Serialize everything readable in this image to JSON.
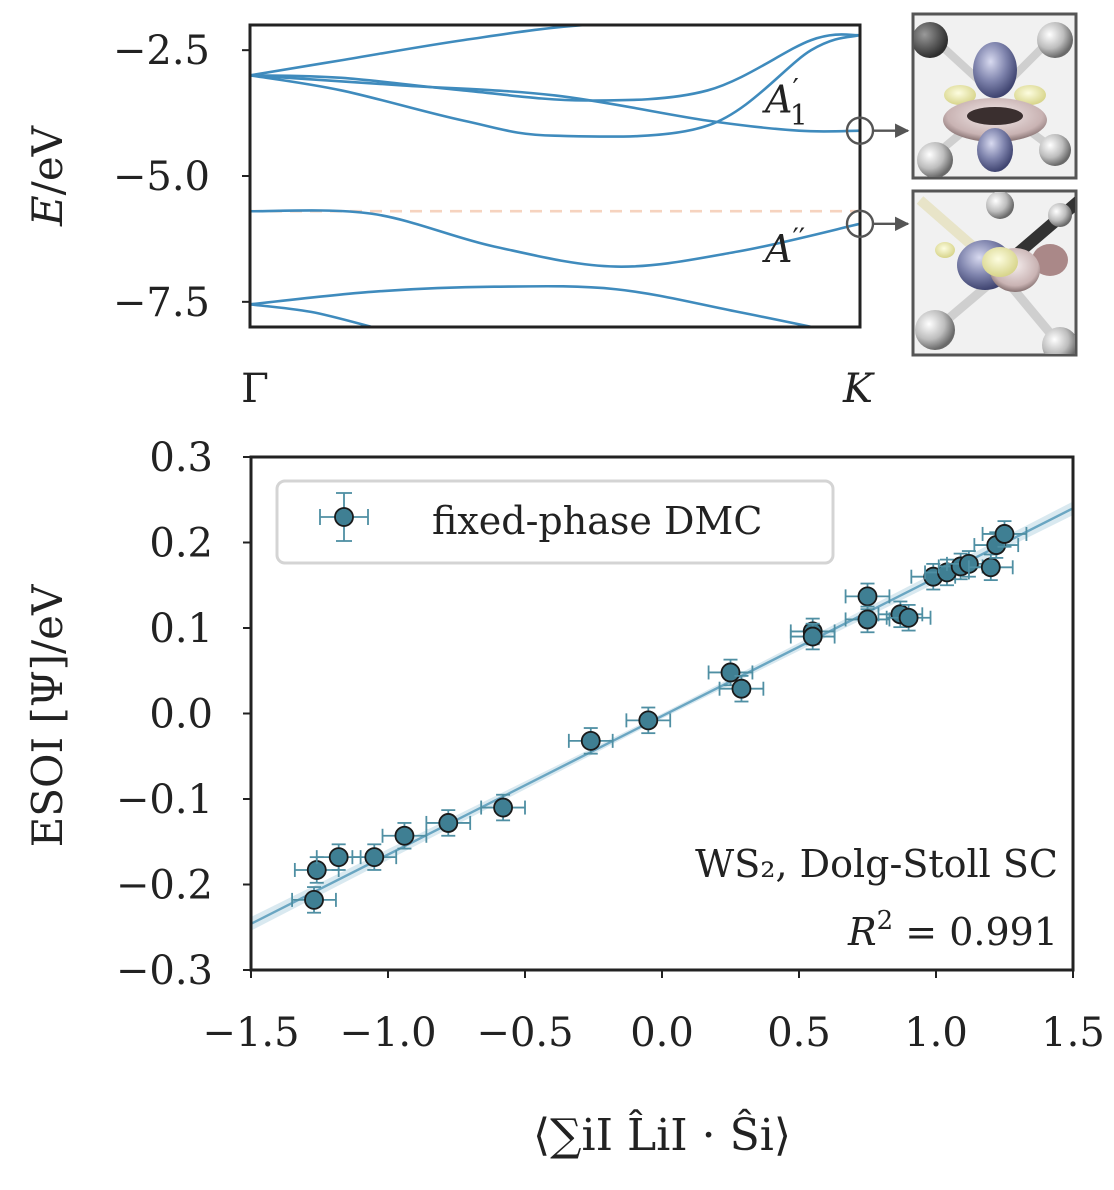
{
  "colors": {
    "band": "#3f8bbd",
    "fermi": "#f6d3bf",
    "marker_fill": "#3f7f93",
    "marker_edge": "#1a1a1a",
    "errorbar": "#4f8fa3",
    "fit_line": "#6aa6c2",
    "fit_band": "#cfe3ec",
    "axis": "#222222"
  },
  "chart_data": [
    {
      "type": "line",
      "ylabel_main": "E",
      "ylabel_unit": "/eV",
      "xticks": [
        "Γ",
        "K"
      ],
      "yticks": [
        -2.5,
        -5.0,
        -7.5
      ],
      "ytick_labels": [
        "−2.5",
        "−5.0",
        "−7.5"
      ],
      "ylim": [
        -8.0,
        -2.0
      ],
      "xlim": [
        0,
        1
      ],
      "fermi_level": -5.7,
      "annotations": [
        {
          "label": "A",
          "sup": "′",
          "sub": "1",
          "k": 1.0,
          "energy": -4.1
        },
        {
          "label": "A",
          "sup": "′′",
          "sub": "",
          "k": 1.0,
          "energy": -5.95
        }
      ],
      "series": [
        {
          "x": [
            0,
            0.15,
            0.35,
            0.55,
            0.75,
            0.92,
            1.0
          ],
          "y": [
            -3.0,
            -2.7,
            -2.3,
            -2.0,
            -2.0,
            -2.0,
            -2.0
          ]
        },
        {
          "x": [
            0,
            0.15,
            0.35,
            0.55,
            0.75,
            0.92,
            1.0
          ],
          "y": [
            -3.0,
            -3.05,
            -3.3,
            -3.5,
            -3.3,
            -2.3,
            -2.2
          ]
        },
        {
          "x": [
            0,
            0.15,
            0.35,
            0.5,
            0.75,
            0.92,
            1.0
          ],
          "y": [
            -3.0,
            -3.3,
            -3.9,
            -4.2,
            -4.0,
            -2.5,
            -2.2
          ]
        },
        {
          "x": [
            0,
            0.25,
            0.5,
            0.75,
            0.9,
            1.0
          ],
          "y": [
            -3.0,
            -3.2,
            -3.4,
            -3.9,
            -4.1,
            -4.1
          ]
        },
        {
          "x": [
            0,
            0.2,
            0.4,
            0.6,
            0.8,
            1.0
          ],
          "y": [
            -5.7,
            -5.75,
            -6.4,
            -6.8,
            -6.5,
            -5.95
          ]
        },
        {
          "x": [
            0,
            0.2,
            0.4,
            0.6,
            0.8,
            1.0
          ],
          "y": [
            -7.55,
            -7.3,
            -7.2,
            -7.25,
            -7.7,
            -8.2
          ]
        },
        {
          "x": [
            0,
            0.1,
            0.2
          ],
          "y": [
            -7.55,
            -7.7,
            -8.0
          ]
        }
      ]
    },
    {
      "type": "scatter",
      "xlabel": "⟨∑iI L̂iI · Ŝi⟩",
      "ylabel": "ESOI [Ψ]/eV",
      "xlim": [
        -1.5,
        1.5
      ],
      "ylim": [
        -0.3,
        0.3
      ],
      "xticks": [
        -1.5,
        -1.0,
        -0.5,
        0.0,
        0.5,
        1.0,
        1.5
      ],
      "xtick_labels": [
        "−1.5",
        "−1.0",
        "−0.5",
        "0.0",
        "0.5",
        "1.0",
        "1.5"
      ],
      "yticks": [
        0.3,
        0.2,
        0.1,
        0.0,
        -0.1,
        -0.2,
        -0.3
      ],
      "ytick_labels": [
        "0.3",
        "0.2",
        "0.1",
        "0.0",
        "−0.1",
        "−0.2",
        "−0.3"
      ],
      "legend": "fixed-phase DMC",
      "legend_position": "top-left",
      "annotation_line1": "WS₂, Dolg-Stoll SC",
      "annotation_line2_lhs": "R",
      "annotation_line2_sup": "2",
      "annotation_line2_rhs": " = 0.991",
      "fit": {
        "slope": 0.162,
        "intercept": -0.003
      },
      "xerr": 0.08,
      "yerr": 0.015,
      "points": [
        {
          "x": -1.27,
          "y": -0.218
        },
        {
          "x": -1.26,
          "y": -0.183
        },
        {
          "x": -1.18,
          "y": -0.168
        },
        {
          "x": -1.05,
          "y": -0.168
        },
        {
          "x": -0.94,
          "y": -0.143
        },
        {
          "x": -0.78,
          "y": -0.128
        },
        {
          "x": -0.58,
          "y": -0.11
        },
        {
          "x": -0.26,
          "y": -0.032
        },
        {
          "x": -0.05,
          "y": -0.008
        },
        {
          "x": 0.25,
          "y": 0.048
        },
        {
          "x": 0.29,
          "y": 0.029
        },
        {
          "x": 0.55,
          "y": 0.096
        },
        {
          "x": 0.55,
          "y": 0.09
        },
        {
          "x": 0.75,
          "y": 0.137
        },
        {
          "x": 0.75,
          "y": 0.11
        },
        {
          "x": 0.87,
          "y": 0.116
        },
        {
          "x": 0.9,
          "y": 0.112
        },
        {
          "x": 0.99,
          "y": 0.16
        },
        {
          "x": 1.04,
          "y": 0.165
        },
        {
          "x": 1.09,
          "y": 0.172
        },
        {
          "x": 1.12,
          "y": 0.175
        },
        {
          "x": 1.2,
          "y": 0.171
        },
        {
          "x": 1.22,
          "y": 0.197
        },
        {
          "x": 1.25,
          "y": 0.21
        }
      ]
    }
  ]
}
